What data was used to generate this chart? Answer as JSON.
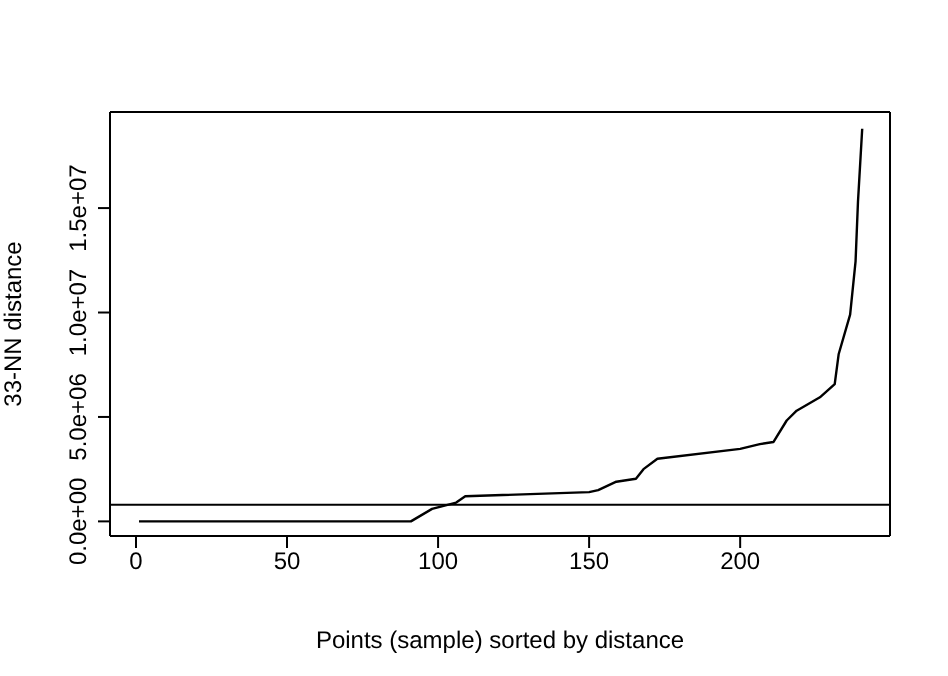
{
  "chart_data": {
    "type": "line",
    "xlabel": "Points (sample) sorted by distance",
    "ylabel": "33-NN distance",
    "x": [
      1,
      91,
      98,
      106,
      109,
      150,
      153,
      159,
      165.5,
      168,
      172.6,
      200,
      206.5,
      211,
      215.4,
      218.7,
      226.4,
      231.3,
      232.6,
      236.4,
      238.2,
      239,
      240.4
    ],
    "series": [
      {
        "color": "#000000",
        "values": [
          0,
          0,
          600000.0,
          900000.0,
          1200000.0,
          1400000.0,
          1500000.0,
          1900000.0,
          2040000.0,
          2500000.0,
          3000000.0,
          3470000.0,
          3700000.0,
          3800000.0,
          4830000.0,
          5300000.0,
          5940000.0,
          6570000.0,
          8000000.0,
          9900000.0,
          12450000.0,
          15300000.0,
          18800000.0
        ]
      }
    ],
    "xlim": [
      -8.6,
      249.6
    ],
    "xticks": [
      0,
      50,
      100,
      150,
      200
    ],
    "ylim": [
      -700000.0,
      19600000.0
    ],
    "yticks": [
      {
        "value": 0,
        "label": "0.0e+00"
      },
      {
        "value": 5000000,
        "label": "5.0e+06"
      },
      {
        "value": 10000000,
        "label": "1.0e+07"
      },
      {
        "value": 15000000,
        "label": "1.5e+07"
      }
    ],
    "ref_lines": [
      {
        "axis": "y",
        "value": 800000.0,
        "color": "#000000"
      }
    ],
    "grid": false,
    "legend": false,
    "marker": "none",
    "line_style": "solid"
  }
}
